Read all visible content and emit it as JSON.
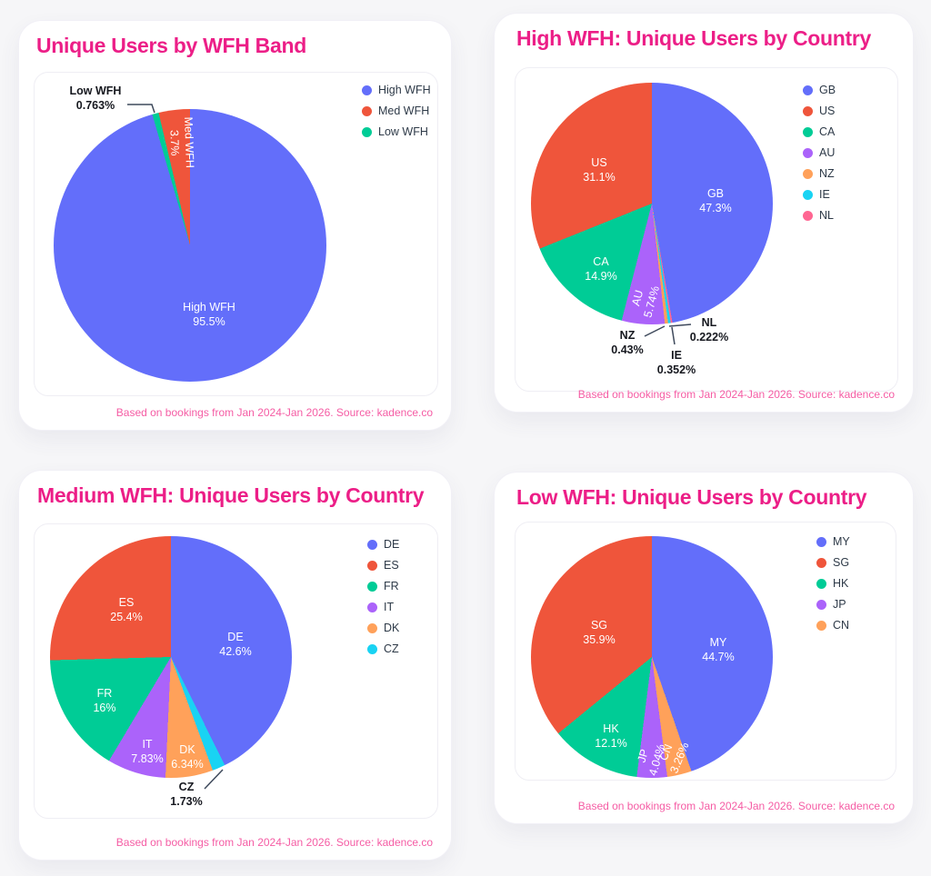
{
  "colors": {
    "title-pink": "#EC1E87",
    "caption-pink": "#F55CA4",
    "legend-text": "#2E3A48",
    "outside-label": "#16181F",
    "palette-blue": "#636EFA",
    "palette-red": "#EF553B",
    "palette-green": "#00CC96",
    "palette-purple": "#AB63FA",
    "palette-orange": "#FFA15A",
    "palette-cyan": "#19D3F3",
    "palette-pink": "#FF6692"
  },
  "chart_data": [
    {
      "type": "pie",
      "title": "Unique Users by WFH Band",
      "caption": "Based on bookings from Jan 2024-Jan 2026. Source: kadence.co",
      "legend_position": "right",
      "slices": [
        {
          "label": "High WFH",
          "value_pct": 95.5,
          "display_pct": "95.5%",
          "color": "#636EFA",
          "label_placement": "inside"
        },
        {
          "label": "Med WFH",
          "value_pct": 3.7,
          "display_pct": "3.7%",
          "color": "#EF553B",
          "label_placement": "inside-rotated"
        },
        {
          "label": "Low WFH",
          "value_pct": 0.763,
          "display_pct": "0.763%",
          "color": "#00CC96",
          "label_placement": "outside"
        }
      ],
      "clockwise_order": [
        0,
        2,
        1
      ]
    },
    {
      "type": "pie",
      "title": "High WFH: Unique Users by Country",
      "caption": "Based on bookings from Jan 2024-Jan 2026. Source: kadence.co",
      "legend_position": "right",
      "slices": [
        {
          "label": "GB",
          "value_pct": 47.3,
          "display_pct": "47.3%",
          "color": "#636EFA",
          "label_placement": "inside"
        },
        {
          "label": "US",
          "value_pct": 31.1,
          "display_pct": "31.1%",
          "color": "#EF553B",
          "label_placement": "inside"
        },
        {
          "label": "CA",
          "value_pct": 14.9,
          "display_pct": "14.9%",
          "color": "#00CC96",
          "label_placement": "inside"
        },
        {
          "label": "AU",
          "value_pct": 5.74,
          "display_pct": "5.74%",
          "color": "#AB63FA",
          "label_placement": "inside-rotated"
        },
        {
          "label": "NZ",
          "value_pct": 0.43,
          "display_pct": "0.43%",
          "color": "#FFA15A",
          "label_placement": "outside"
        },
        {
          "label": "IE",
          "value_pct": 0.352,
          "display_pct": "0.352%",
          "color": "#19D3F3",
          "label_placement": "outside"
        },
        {
          "label": "NL",
          "value_pct": 0.222,
          "display_pct": "0.222%",
          "color": "#FF6692",
          "label_placement": "outside"
        }
      ],
      "clockwise_order": [
        0,
        6,
        5,
        4,
        3,
        2,
        1
      ]
    },
    {
      "type": "pie",
      "title": "Medium WFH: Unique Users by Country",
      "caption": "Based on bookings from Jan 2024-Jan 2026. Source: kadence.co",
      "legend_position": "right",
      "slices": [
        {
          "label": "DE",
          "value_pct": 42.6,
          "display_pct": "42.6%",
          "color": "#636EFA",
          "label_placement": "inside"
        },
        {
          "label": "ES",
          "value_pct": 25.4,
          "display_pct": "25.4%",
          "color": "#EF553B",
          "label_placement": "inside"
        },
        {
          "label": "FR",
          "value_pct": 16,
          "display_pct": "16%",
          "color": "#00CC96",
          "label_placement": "inside"
        },
        {
          "label": "IT",
          "value_pct": 7.83,
          "display_pct": "7.83%",
          "color": "#AB63FA",
          "label_placement": "inside"
        },
        {
          "label": "DK",
          "value_pct": 6.34,
          "display_pct": "6.34%",
          "color": "#FFA15A",
          "label_placement": "inside"
        },
        {
          "label": "CZ",
          "value_pct": 1.73,
          "display_pct": "1.73%",
          "color": "#19D3F3",
          "label_placement": "outside"
        }
      ],
      "clockwise_order": [
        0,
        5,
        4,
        3,
        2,
        1
      ]
    },
    {
      "type": "pie",
      "title": "Low WFH: Unique Users by Country",
      "caption": "Based on bookings from Jan 2024-Jan 2026. Source: kadence.co",
      "legend_position": "right",
      "slices": [
        {
          "label": "MY",
          "value_pct": 44.7,
          "display_pct": "44.7%",
          "color": "#636EFA",
          "label_placement": "inside"
        },
        {
          "label": "SG",
          "value_pct": 35.9,
          "display_pct": "35.9%",
          "color": "#EF553B",
          "label_placement": "inside"
        },
        {
          "label": "HK",
          "value_pct": 12.1,
          "display_pct": "12.1%",
          "color": "#00CC96",
          "label_placement": "inside"
        },
        {
          "label": "JP",
          "value_pct": 4.04,
          "display_pct": "4.04%",
          "color": "#AB63FA",
          "label_placement": "inside-rotated"
        },
        {
          "label": "CN",
          "value_pct": 3.26,
          "display_pct": "3.26%",
          "color": "#FFA15A",
          "label_placement": "inside-rotated"
        }
      ],
      "clockwise_order": [
        0,
        4,
        3,
        2,
        1
      ]
    }
  ]
}
